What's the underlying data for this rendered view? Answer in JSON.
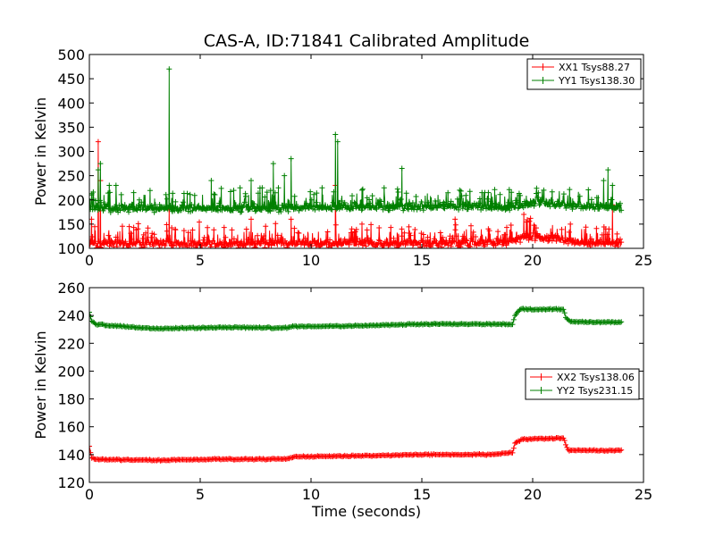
{
  "figure": {
    "title": "CAS-A, ID:71841 Calibrated Amplitude"
  },
  "chart_data": [
    {
      "type": "line",
      "title": "CAS-A, ID:71841 Calibrated Amplitude",
      "xlabel": "",
      "ylabel": "Power in Kelvin",
      "xlim": [
        0,
        25
      ],
      "ylim": [
        100,
        500
      ],
      "xticks": [
        "0",
        "5",
        "10",
        "15",
        "20",
        "25"
      ],
      "yticks": [
        "100",
        "150",
        "200",
        "250",
        "300",
        "350",
        "400",
        "450",
        "500"
      ],
      "grid": false,
      "legend": "top-right",
      "marker": "+",
      "series": [
        {
          "name": "XX1 Tsys88.27",
          "color": "#ff0000",
          "base": [
            [
              0,
              108
            ],
            [
              18.8,
              110
            ],
            [
              19.2,
              118
            ],
            [
              20,
              122
            ],
            [
              21,
              120
            ],
            [
              22,
              112
            ],
            [
              24,
              108
            ]
          ],
          "spikes": [
            [
              0.1,
              160
            ],
            [
              0.4,
              320
            ],
            [
              0.5,
              240
            ],
            [
              1.5,
              130
            ],
            [
              1.8,
              145
            ],
            [
              3.6,
              180
            ],
            [
              7.3,
              160
            ],
            [
              9.1,
              160
            ],
            [
              11.1,
              230
            ],
            [
              12.3,
              150
            ],
            [
              16.5,
              160
            ],
            [
              18,
              140
            ],
            [
              19.6,
              170
            ],
            [
              20.1,
              150
            ],
            [
              21.7,
              150
            ],
            [
              23.3,
              140
            ],
            [
              23.6,
              190
            ]
          ]
        },
        {
          "name": "YY1 Tsys138.30",
          "color": "#008000",
          "base": [
            [
              0,
              182
            ],
            [
              5,
              181
            ],
            [
              10,
              183
            ],
            [
              15,
              185
            ],
            [
              19,
              184
            ],
            [
              20,
              193
            ],
            [
              22,
              188
            ],
            [
              24,
              182
            ]
          ],
          "spikes": [
            [
              0.1,
              210
            ],
            [
              0.4,
              262
            ],
            [
              0.5,
              275
            ],
            [
              0.9,
              230
            ],
            [
              1.2,
              230
            ],
            [
              2,
              215
            ],
            [
              3.6,
              470
            ],
            [
              5.5,
              240
            ],
            [
              6.8,
              225
            ],
            [
              7.3,
              240
            ],
            [
              7.8,
              225
            ],
            [
              8.3,
              275
            ],
            [
              8.8,
              250
            ],
            [
              9.1,
              285
            ],
            [
              10.5,
              225
            ],
            [
              11.1,
              335
            ],
            [
              11.2,
              320
            ],
            [
              12.3,
              220
            ],
            [
              13.3,
              225
            ],
            [
              14.1,
              265
            ],
            [
              18,
              215
            ],
            [
              20.5,
              220
            ],
            [
              23.2,
              240
            ],
            [
              23.4,
              262
            ],
            [
              23.6,
              230
            ]
          ]
        }
      ]
    },
    {
      "type": "line",
      "title": "",
      "xlabel": "Time (seconds)",
      "ylabel": "Power in Kelvin",
      "xlim": [
        0,
        25
      ],
      "ylim": [
        120,
        260
      ],
      "xticks": [
        "0",
        "5",
        "10",
        "15",
        "20",
        "25"
      ],
      "yticks": [
        "120",
        "140",
        "160",
        "180",
        "200",
        "220",
        "240",
        "260"
      ],
      "grid": false,
      "legend": "center-right",
      "marker": "+",
      "series": [
        {
          "name": "XX2 Tsys138.06",
          "color": "#ff0000",
          "points": [
            [
              0,
              146
            ],
            [
              0.1,
              138
            ],
            [
              0.3,
              136.5
            ],
            [
              3,
              136
            ],
            [
              6,
              136.7
            ],
            [
              8.9,
              136.8
            ],
            [
              9.2,
              138.5
            ],
            [
              12,
              139
            ],
            [
              15,
              140
            ],
            [
              18,
              140
            ],
            [
              19.1,
              141.5
            ],
            [
              19.2,
              148
            ],
            [
              19.5,
              151
            ],
            [
              21.4,
              152
            ],
            [
              21.5,
              147
            ],
            [
              21.6,
              143
            ],
            [
              24,
              143
            ]
          ]
        },
        {
          "name": "YY2 Tsys231.15",
          "color": "#008000",
          "points": [
            [
              0,
              242
            ],
            [
              0.1,
              236
            ],
            [
              0.3,
              233.5
            ],
            [
              3,
              230.5
            ],
            [
              6,
              231.5
            ],
            [
              8.8,
              231
            ],
            [
              9.2,
              232
            ],
            [
              12,
              232.5
            ],
            [
              15,
              233.8
            ],
            [
              19.1,
              233.8
            ],
            [
              19.2,
              240
            ],
            [
              19.4,
              244.5
            ],
            [
              21.4,
              244.5
            ],
            [
              21.5,
              238
            ],
            [
              21.7,
              235.5
            ],
            [
              24,
              235
            ]
          ]
        }
      ]
    }
  ]
}
